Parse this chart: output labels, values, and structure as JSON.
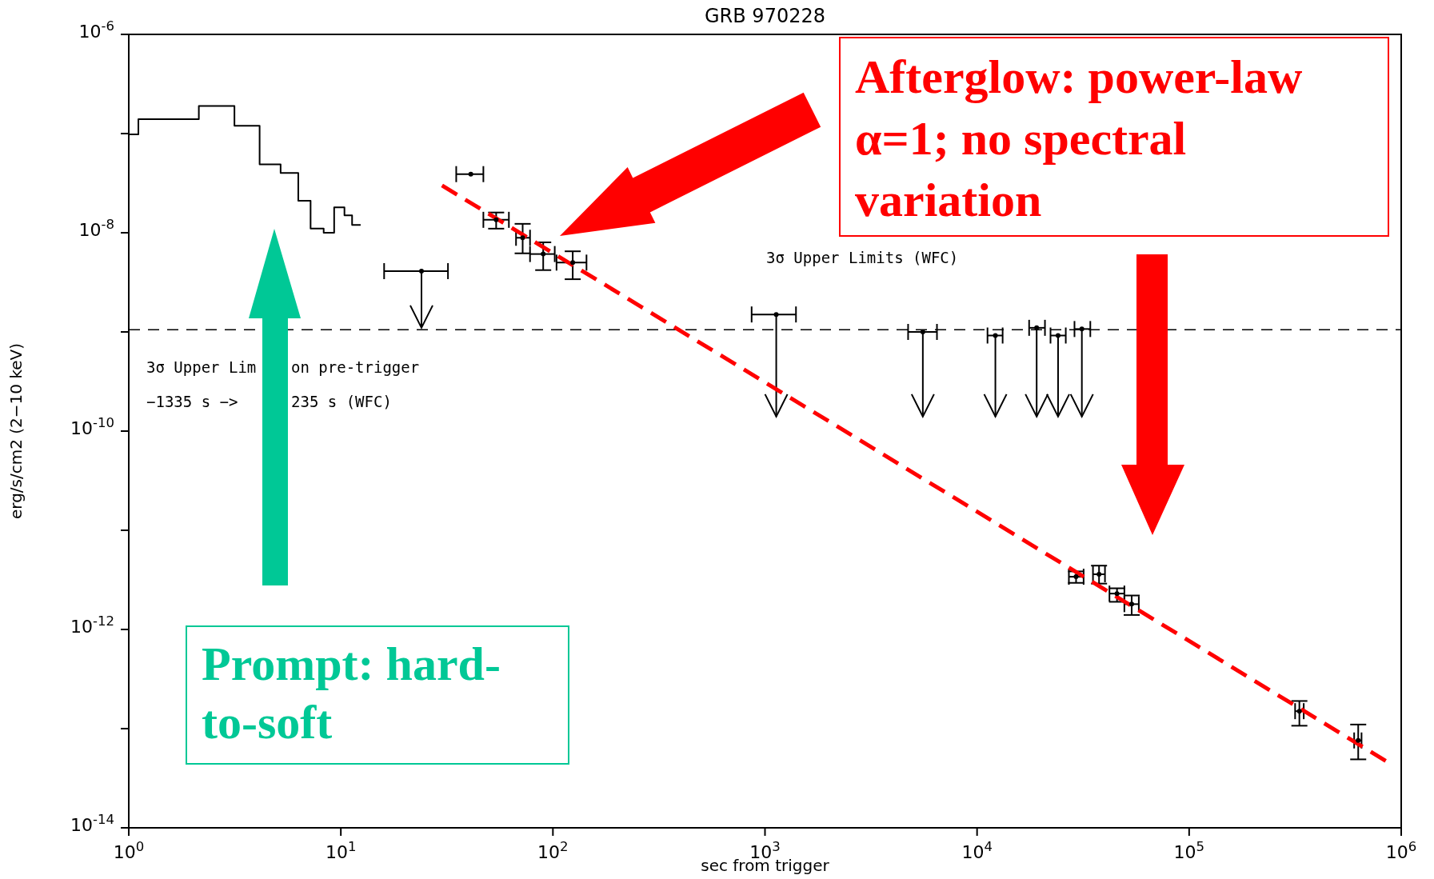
{
  "chart_data": {
    "type": "scatter",
    "title": "GRB 970228",
    "xlabel": "sec from trigger",
    "ylabel": "erg/s/cm2 (2−10 keV)",
    "log": "xy",
    "xlim": [
      1,
      1000000
    ],
    "xticks": [
      {
        "value": 1,
        "label": "10$^{0}$"
      },
      {
        "value": 10,
        "label": "10$^{1}$"
      },
      {
        "value": 100,
        "label": "10$^{2}$"
      },
      {
        "value": 1000,
        "label": "10$^{3}$"
      },
      {
        "value": 10000,
        "label": "10$^{4}$"
      },
      {
        "value": 100000,
        "label": "10$^{5}$"
      },
      {
        "value": 1000000,
        "label": "10$^{6}$"
      }
    ],
    "ylim": [
      1e-14,
      1e-06
    ],
    "yticks": [
      {
        "value": 1e-14,
        "label": "10$^{-14}$"
      },
      {
        "value": 1e-13,
        "label": null
      },
      {
        "value": 1e-12,
        "label": "10$^{-12}$"
      },
      {
        "value": 1e-11,
        "label": null
      },
      {
        "value": 1e-10,
        "label": "10$^{-10}$"
      },
      {
        "value": 1e-09,
        "label": null
      },
      {
        "value": 1e-08,
        "label": "10$^{-8}$"
      },
      {
        "value": 1e-07,
        "label": null
      },
      {
        "value": 1e-06,
        "label": "10$^{-6}$"
      }
    ],
    "series": [
      {
        "type": "step",
        "color": "#000000",
        "x": [
          1,
          1.11,
          2.14,
          3.15,
          4.14,
          5.2,
          6.3,
          7.2,
          8.3,
          9.3,
          10.4,
          11.3,
          12.4
        ],
        "values": [
          9.8e-08,
          1.4e-07,
          1.9e-07,
          1.2e-07,
          4.9e-08,
          4e-08,
          2.1e-08,
          1.1e-08,
          1e-08,
          1.8e-08,
          1.5e-08,
          1.2e-08,
          1.2e-08
        ]
      },
      {
        "color": "#000000",
        "marker": "circle",
        "x": [
          41,
          54,
          72,
          90,
          124,
          29300,
          37600,
          45700,
          53600,
          331000,
          627000
        ],
        "values": [
          3.9e-08,
          1.35e-08,
          8.9e-09,
          6.1e-09,
          5e-09,
          3.4e-12,
          3.6e-12,
          2.3e-12,
          1.8e-12,
          1.5e-13,
          7.6e-14
        ],
        "xerrors": [
          [
            35,
            47
          ],
          [
            47,
            62
          ],
          [
            67,
            78
          ],
          [
            78,
            102
          ],
          [
            104,
            144
          ],
          [
            27100,
            31800
          ],
          [
            35200,
            40100
          ],
          [
            42100,
            49500
          ],
          [
            49500,
            57900
          ],
          [
            316000,
            347000
          ],
          [
            600000,
            650000
          ]
        ],
        "errors": [
          null,
          [
            1.1e-08,
            1.6e-08
          ],
          [
            6.2e-09,
            1.23e-08
          ],
          [
            4.2e-09,
            8e-09
          ],
          [
            3.4e-09,
            6.5e-09
          ],
          [
            2.95e-12,
            3.85e-12
          ],
          [
            2.9e-12,
            4.4e-12
          ],
          [
            1.9e-12,
            2.6e-12
          ],
          [
            1.4e-12,
            2.2e-12
          ],
          [
            1.07e-13,
            1.9e-13
          ],
          [
            4.9e-14,
            1.1e-13
          ]
        ]
      },
      {
        "color": "#000000",
        "marker": "circle",
        "x": [
          24,
          1130,
          5550,
          12200,
          19100,
          24100,
          31200
        ],
        "values": [
          4.1e-09,
          1.5e-09,
          1e-09,
          9.2e-10,
          1.1e-09,
          9.2e-10,
          1.07e-09
        ],
        "xerrors": [
          [
            16,
            32
          ],
          [
            865,
            1400
          ],
          [
            4730,
            6470
          ],
          [
            11200,
            13200
          ],
          [
            17600,
            20900
          ],
          [
            22200,
            26200
          ],
          [
            28800,
            34200
          ]
        ],
        "errors": [
          [
            1.1e-09,
            4.1e-09
          ],
          [
            1.4e-10,
            1.5e-09
          ],
          [
            1.4e-10,
            1e-09
          ],
          [
            1.4e-10,
            9.2e-10
          ],
          [
            1.4e-10,
            1.1e-09
          ],
          [
            1.4e-10,
            9.2e-10
          ],
          [
            1.4e-10,
            1.07e-09
          ]
        ]
      },
      {
        "type": "line",
        "color": "#ff0000",
        "line_style": "dashed",
        "x": [
          30,
          850000
        ],
        "values": [
          3e-08,
          4.7e-14
        ]
      }
    ],
    "ref_lines": [
      {
        "axis": "y",
        "value": 1.05e-09,
        "color": "#000000",
        "line_style": "dashed"
      }
    ],
    "annotations": [
      "Afterglow: power-law α=1; no spectral variation",
      "Prompt: hard-to-soft",
      "3σ Upper Limits (WFC)",
      "3σ Upper Lim",
      "on pre-trigger",
      "−1335 s −>",
      "235 s (WFC)"
    ]
  }
}
